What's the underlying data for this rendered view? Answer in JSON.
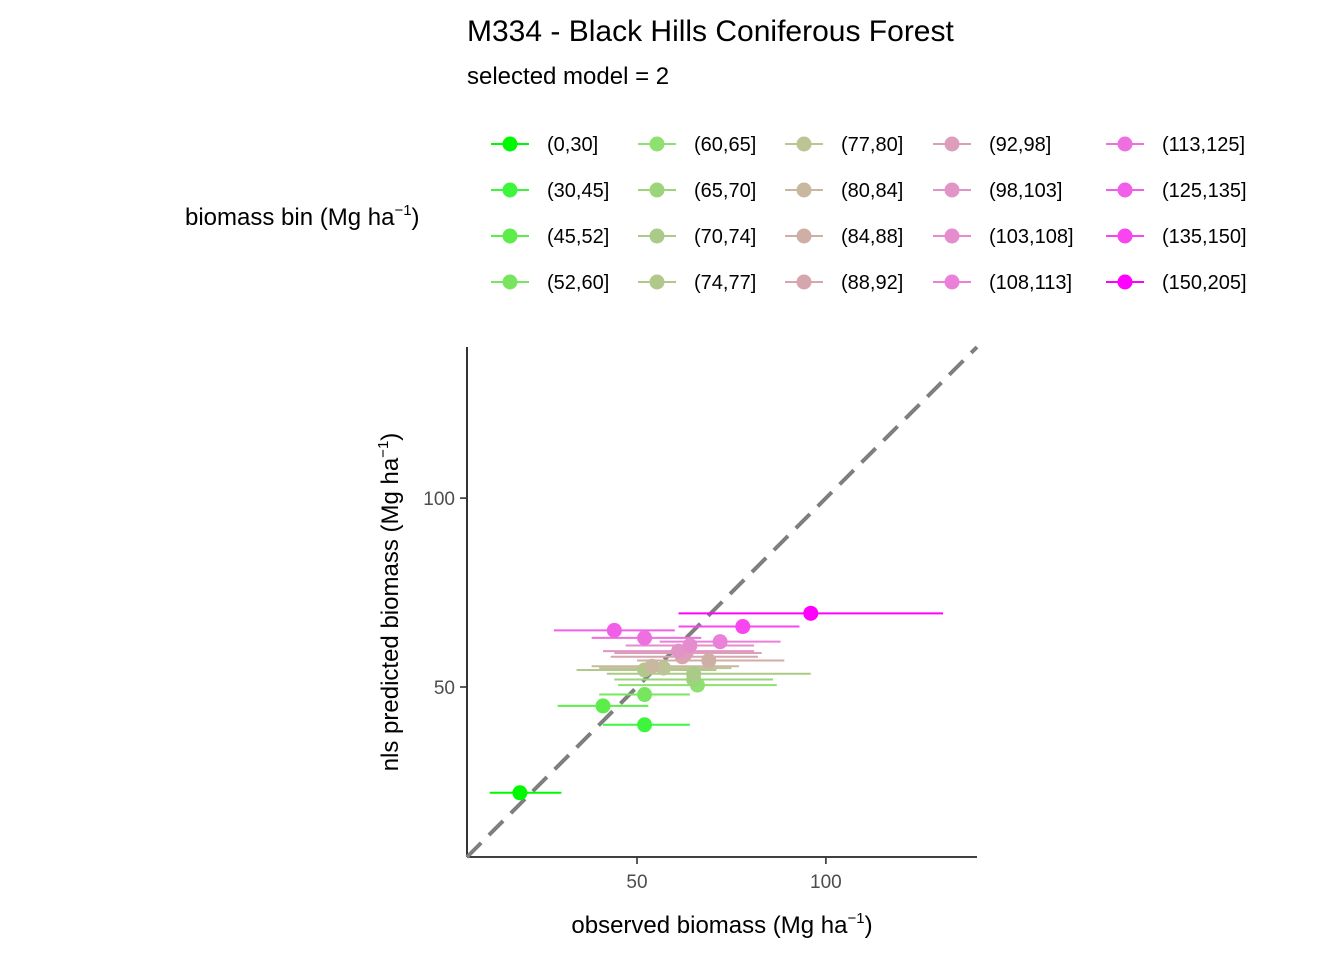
{
  "chart_data": {
    "type": "scatter",
    "title": "M334 - Black Hills Coniferous Forest",
    "subtitle": "selected model = 2",
    "legend": {
      "title": "biomass bin (Mg ha",
      "title_sup": "−1",
      "title_close": ")",
      "placement": "top",
      "entries": [
        {
          "label": "(0,30]",
          "color": "#00F900"
        },
        {
          "label": "(30,45]",
          "color": "#3EF53E"
        },
        {
          "label": "(45,52]",
          "color": "#5DED4A"
        },
        {
          "label": "(52,60]",
          "color": "#77E55E"
        },
        {
          "label": "(60,65]",
          "color": "#8EE070"
        },
        {
          "label": "(65,70]",
          "color": "#9BD47A"
        },
        {
          "label": "(70,74]",
          "color": "#A9CB87"
        },
        {
          "label": "(74,77]",
          "color": "#B0C98A"
        },
        {
          "label": "(77,80]",
          "color": "#BCC495"
        },
        {
          "label": "(80,84]",
          "color": "#C8B8A0"
        },
        {
          "label": "(84,88]",
          "color": "#CFAEA6"
        },
        {
          "label": "(88,92]",
          "color": "#D6A6AE"
        },
        {
          "label": "(92,98]",
          "color": "#DC9EBA"
        },
        {
          "label": "(98,103]",
          "color": "#E195C6"
        },
        {
          "label": "(103,108]",
          "color": "#E58CCF"
        },
        {
          "label": "(108,113]",
          "color": "#EA80D8"
        },
        {
          "label": "(113,125]",
          "color": "#EE6FDF"
        },
        {
          "label": "(125,135]",
          "color": "#F15EE8"
        },
        {
          "label": "(135,150]",
          "color": "#F845EF"
        },
        {
          "label": "(150,205]",
          "color": "#FF00FF"
        }
      ]
    },
    "xlabel": "observed biomass (Mg ha",
    "xlabel_sup": "−1",
    "xlabel_close": ")",
    "ylabel": "nls predicted biomass (Mg ha",
    "ylabel_sup": "−1",
    "ylabel_close": ")",
    "xlim": [
      5,
      140
    ],
    "ylim": [
      5,
      140
    ],
    "x_ticks": [
      50,
      100
    ],
    "y_ticks": [
      50,
      100
    ],
    "x_tick_labels": [
      "50",
      "100"
    ],
    "y_tick_labels": [
      "50",
      "100"
    ],
    "reference_line": {
      "slope": 1,
      "intercept": 0,
      "style": "dashed",
      "color": "#7f7f7f"
    },
    "grid": false,
    "points": [
      {
        "bin": "(0,30]",
        "x": 19,
        "y": 22,
        "xmin": 11,
        "xmax": 30,
        "color": "#00F900"
      },
      {
        "bin": "(30,45]",
        "x": 52,
        "y": 40,
        "xmin": 41,
        "xmax": 64,
        "color": "#3EF53E"
      },
      {
        "bin": "(45,52]",
        "x": 41,
        "y": 45,
        "xmin": 29,
        "xmax": 53,
        "color": "#5DED4A"
      },
      {
        "bin": "(52,60]",
        "x": 52,
        "y": 48,
        "xmin": 40,
        "xmax": 64,
        "color": "#77E55E"
      },
      {
        "bin": "(60,65]",
        "x": 66,
        "y": 50.5,
        "xmin": 45,
        "xmax": 87,
        "color": "#8EE070"
      },
      {
        "bin": "(65,70]",
        "x": 65,
        "y": 52,
        "xmin": 44,
        "xmax": 86,
        "color": "#9BD47A"
      },
      {
        "bin": "(70,74]",
        "x": 65,
        "y": 53.5,
        "xmin": 42,
        "xmax": 96,
        "color": "#A9CB87"
      },
      {
        "bin": "(74,77]",
        "x": 52,
        "y": 54.5,
        "xmin": 34,
        "xmax": 71,
        "color": "#B0C98A"
      },
      {
        "bin": "(77,80]",
        "x": 57,
        "y": 55,
        "xmin": 40,
        "xmax": 75,
        "color": "#BCC495"
      },
      {
        "bin": "(80,84]",
        "x": 54,
        "y": 55.5,
        "xmin": 38,
        "xmax": 77,
        "color": "#C8B8A0"
      },
      {
        "bin": "(84,88]",
        "x": 69,
        "y": 57,
        "xmin": 50,
        "xmax": 89,
        "color": "#CFAEA6"
      },
      {
        "bin": "(88,92]",
        "x": 62,
        "y": 58,
        "xmin": 43,
        "xmax": 82,
        "color": "#D6A6AE"
      },
      {
        "bin": "(92,98]",
        "x": 63,
        "y": 59,
        "xmin": 44,
        "xmax": 83,
        "color": "#DC9EBA"
      },
      {
        "bin": "(98,103]",
        "x": 61,
        "y": 59.5,
        "xmin": 41,
        "xmax": 81,
        "color": "#E195C6"
      },
      {
        "bin": "(103,108]",
        "x": 64,
        "y": 61,
        "xmin": 47,
        "xmax": 81,
        "color": "#E58CCF"
      },
      {
        "bin": "(108,113]",
        "x": 72,
        "y": 62,
        "xmin": 56,
        "xmax": 88,
        "color": "#EA80D8"
      },
      {
        "bin": "(113,125]",
        "x": 52,
        "y": 63,
        "xmin": 38,
        "xmax": 67,
        "color": "#EE6FDF"
      },
      {
        "bin": "(125,135]",
        "x": 44,
        "y": 65,
        "xmin": 28,
        "xmax": 60,
        "color": "#F15EE8"
      },
      {
        "bin": "(135,150]",
        "x": 78,
        "y": 66,
        "xmin": 61,
        "xmax": 93,
        "color": "#F845EF"
      },
      {
        "bin": "(150,205]",
        "x": 96,
        "y": 69.5,
        "xmin": 61,
        "xmax": 131,
        "color": "#FF00FF"
      }
    ]
  }
}
